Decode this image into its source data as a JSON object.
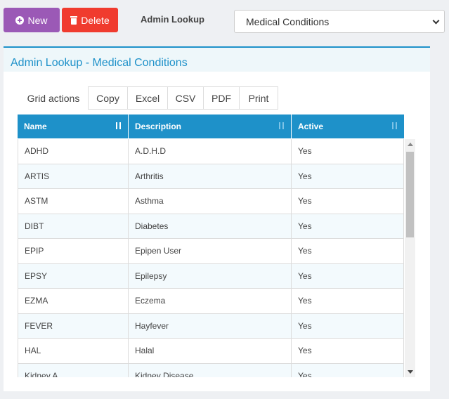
{
  "toolbar": {
    "new_label": "New",
    "delete_label": "Delete",
    "lookup_label": "Admin Lookup",
    "select_value": "Medical Conditions"
  },
  "panel": {
    "title": "Admin Lookup - Medical Conditions"
  },
  "grid_actions": {
    "label": "Grid actions",
    "buttons": [
      "Copy",
      "Excel",
      "CSV",
      "PDF",
      "Print"
    ]
  },
  "table": {
    "columns": [
      "Name",
      "Description",
      "Active"
    ],
    "rows": [
      [
        "ADHD",
        "A.D.H.D",
        "Yes"
      ],
      [
        "ARTIS",
        "Arthritis",
        "Yes"
      ],
      [
        "ASTM",
        "Asthma",
        "Yes"
      ],
      [
        "DIBT",
        "Diabetes",
        "Yes"
      ],
      [
        "EPIP",
        "Epipen User",
        "Yes"
      ],
      [
        "EPSY",
        "Epilepsy",
        "Yes"
      ],
      [
        "EZMA",
        "Eczema",
        "Yes"
      ],
      [
        "FEVER",
        "Hayfever",
        "Yes"
      ],
      [
        "HAL",
        "Halal",
        "Yes"
      ],
      [
        "Kidney A",
        "Kidney Disease",
        "Yes"
      ]
    ]
  },
  "colors": {
    "new_button": "#9b59b6",
    "delete_button": "#f03b2e",
    "accent": "#1e91c9"
  }
}
